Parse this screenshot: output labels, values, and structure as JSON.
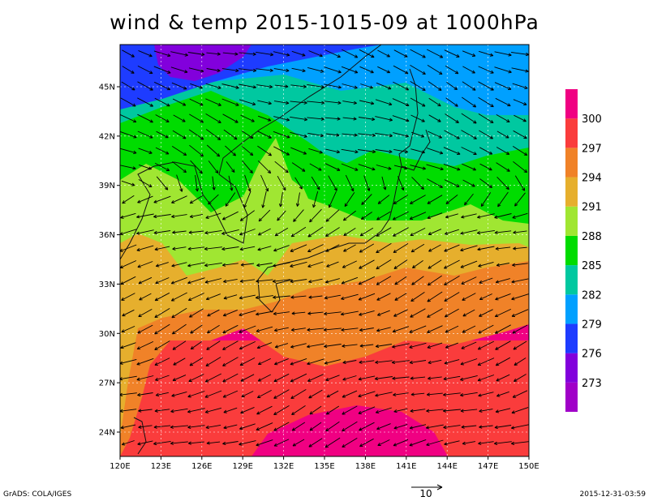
{
  "title": "wind & temp 2015-1015-09 at 1000hPa",
  "lon_labels": [
    "120E",
    "123E",
    "126E",
    "129E",
    "132E",
    "135E",
    "138E",
    "141E",
    "144E",
    "147E",
    "150E"
  ],
  "lat_labels": [
    "45N",
    "42N",
    "39N",
    "36N",
    "33N",
    "30N",
    "27N",
    "24N"
  ],
  "colorbar": {
    "levels": [
      273,
      276,
      279,
      282,
      285,
      288,
      291,
      294,
      297,
      300
    ],
    "colors": [
      "#a000c8",
      "#8200dc",
      "#1e3cff",
      "#00a0ff",
      "#00c8a0",
      "#00dc00",
      "#a0e632",
      "#e6af2d",
      "#f08228",
      "#fa3c3c",
      "#f00082"
    ]
  },
  "credit": "GrADS: COLA/IGES",
  "timestamp": "2015-12-31-03:59",
  "vector_scale": 10
}
